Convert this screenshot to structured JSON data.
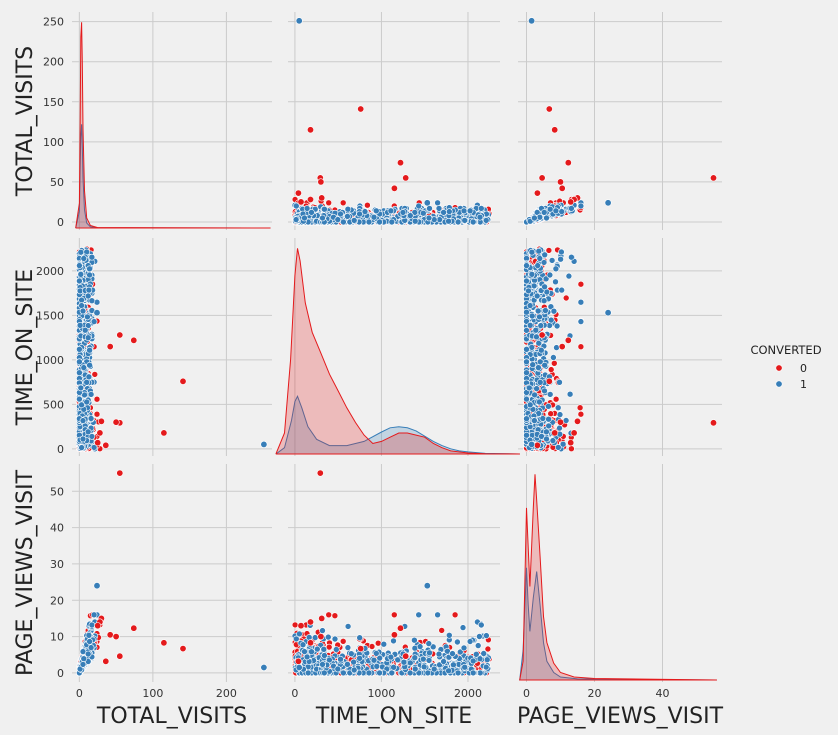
{
  "chart_data": {
    "type": "scatter",
    "subtype": "pairplot",
    "variables": [
      "TOTAL_VISITS",
      "TIME_ON_SITE",
      "PAGE_VIEWS_VISIT"
    ],
    "axes": {
      "TOTAL_VISITS": {
        "range": [
          -10,
          262
        ],
        "ticks": [
          0,
          50,
          100,
          150,
          200,
          250
        ],
        "xticks": [
          0,
          100,
          200
        ]
      },
      "TIME_ON_SITE": {
        "range": [
          -80,
          2370
        ],
        "ticks": [
          0,
          500,
          1000,
          1500,
          2000
        ],
        "xticks": [
          0,
          1000,
          2000
        ]
      },
      "PAGE_VIEWS_VISIT": {
        "range": [
          -2.5,
          57.5
        ],
        "ticks": [
          0,
          10,
          20,
          30,
          40,
          50
        ],
        "xticks": [
          0,
          20,
          40
        ]
      }
    },
    "hue": "CONVERTED",
    "legend": {
      "title": "CONVERTED",
      "position": "right",
      "entries": [
        "0",
        "1"
      ]
    },
    "colors": {
      "0": "#e41a1c",
      "1": "#377eb8"
    },
    "grid": true,
    "diagonal": "kde",
    "series": [
      {
        "name": "0",
        "outliers": [
          [
            115,
            180,
            8.3
          ],
          [
            141,
            760,
            6.7
          ],
          [
            74,
            1220,
            12.3
          ],
          [
            55,
            1280,
            4.6
          ],
          [
            55,
            293,
            55
          ],
          [
            42,
            1150,
            10.5
          ],
          [
            50,
            300,
            10
          ],
          [
            36,
            40,
            3.2
          ],
          [
            30,
            310,
            15
          ],
          [
            28,
            180,
            14
          ],
          [
            25,
            70,
            13
          ]
        ]
      },
      {
        "name": "1",
        "outliers": [
          [
            251,
            50,
            1.5
          ],
          [
            24,
            1530,
            24
          ]
        ]
      }
    ],
    "kde": {
      "TOTAL_VISITS": {
        "0": [
          [
            -5,
            0
          ],
          [
            0,
            30
          ],
          [
            1,
            120
          ],
          [
            2,
            230
          ],
          [
            3,
            248
          ],
          [
            4,
            200
          ],
          [
            5,
            120
          ],
          [
            7,
            45
          ],
          [
            10,
            12
          ],
          [
            15,
            3
          ],
          [
            25,
            0.5
          ],
          [
            260,
            0
          ]
        ],
        "1": [
          [
            -5,
            0
          ],
          [
            0,
            20
          ],
          [
            1,
            70
          ],
          [
            2,
            110
          ],
          [
            3,
            125
          ],
          [
            4,
            100
          ],
          [
            5,
            60
          ],
          [
            7,
            22
          ],
          [
            10,
            6
          ],
          [
            15,
            1.5
          ],
          [
            25,
            0.3
          ],
          [
            260,
            0
          ]
        ]
      },
      "TIME_ON_SITE": {
        "0": [
          [
            -220,
            0
          ],
          [
            -120,
            0.1
          ],
          [
            -50,
            0.45
          ],
          [
            0,
            0.85
          ],
          [
            30,
            0.98
          ],
          [
            60,
            0.92
          ],
          [
            120,
            0.72
          ],
          [
            200,
            0.58
          ],
          [
            300,
            0.48
          ],
          [
            400,
            0.38
          ],
          [
            500,
            0.3
          ],
          [
            600,
            0.22
          ],
          [
            700,
            0.15
          ],
          [
            800,
            0.09
          ],
          [
            900,
            0.05
          ],
          [
            1000,
            0.06
          ],
          [
            1100,
            0.08
          ],
          [
            1200,
            0.1
          ],
          [
            1300,
            0.1
          ],
          [
            1400,
            0.09
          ],
          [
            1500,
            0.08
          ],
          [
            1600,
            0.05
          ],
          [
            1700,
            0.03
          ],
          [
            1800,
            0.015
          ],
          [
            2000,
            0.005
          ],
          [
            2200,
            0.0015
          ],
          [
            2600,
            0
          ]
        ],
        "1": [
          [
            -220,
            0
          ],
          [
            -120,
            0.03
          ],
          [
            -40,
            0.16
          ],
          [
            0,
            0.25
          ],
          [
            30,
            0.275
          ],
          [
            80,
            0.22
          ],
          [
            150,
            0.13
          ],
          [
            250,
            0.07
          ],
          [
            400,
            0.04
          ],
          [
            600,
            0.04
          ],
          [
            800,
            0.06
          ],
          [
            1000,
            0.105
          ],
          [
            1100,
            0.125
          ],
          [
            1200,
            0.13
          ],
          [
            1300,
            0.125
          ],
          [
            1400,
            0.11
          ],
          [
            1500,
            0.085
          ],
          [
            1600,
            0.06
          ],
          [
            1700,
            0.04
          ],
          [
            1800,
            0.025
          ],
          [
            1900,
            0.015
          ],
          [
            2000,
            0.01
          ],
          [
            2200,
            0.003
          ],
          [
            2600,
            0
          ]
        ]
      },
      "PAGE_VIEWS_VISIT": {
        "0": [
          [
            -2,
            0
          ],
          [
            -1,
            0.5
          ],
          [
            0,
            4.6
          ],
          [
            1,
            2.5
          ],
          [
            2,
            4.6
          ],
          [
            2.5,
            5.5
          ],
          [
            3,
            4.8
          ],
          [
            4,
            3.3
          ],
          [
            5,
            1.7
          ],
          [
            6,
            1.0
          ],
          [
            8,
            0.45
          ],
          [
            10,
            0.2
          ],
          [
            14,
            0.08
          ],
          [
            20,
            0.04
          ],
          [
            56,
            0
          ]
        ],
        "1": [
          [
            -2,
            0
          ],
          [
            -1,
            0.8
          ],
          [
            0,
            3.0
          ],
          [
            0.5,
            2.0
          ],
          [
            1,
            1.3
          ],
          [
            2,
            2.2
          ],
          [
            3,
            2.9
          ],
          [
            4,
            2.0
          ],
          [
            5,
            1.0
          ],
          [
            6,
            0.5
          ],
          [
            8,
            0.2
          ],
          [
            10,
            0.08
          ],
          [
            15,
            0.03
          ],
          [
            25,
            0.015
          ],
          [
            56,
            0
          ]
        ]
      }
    }
  }
}
